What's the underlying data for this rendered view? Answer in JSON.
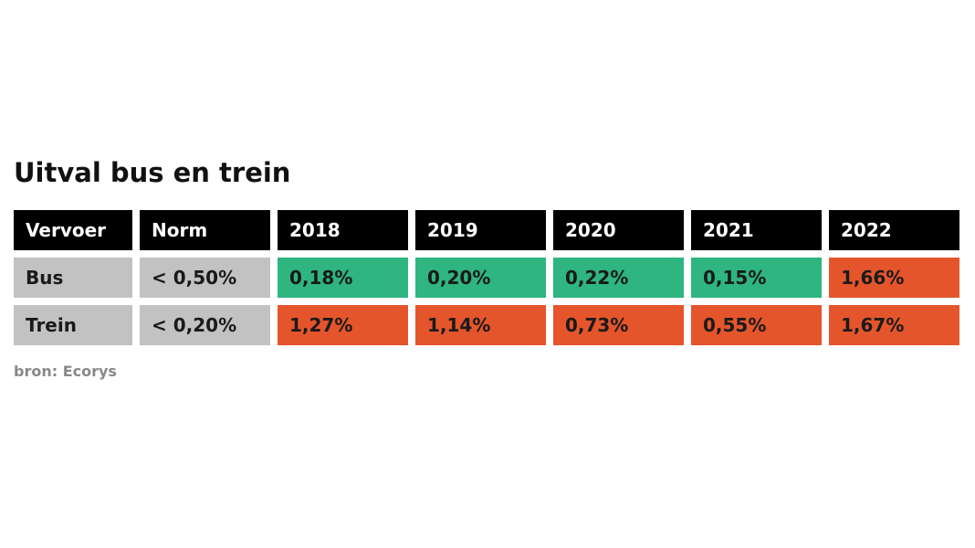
{
  "header": {
    "title": "Uitval bus en trein"
  },
  "table": {
    "columns": [
      "Vervoer",
      "Norm",
      "2018",
      "2019",
      "2020",
      "2021",
      "2022"
    ],
    "rows": [
      [
        "Bus",
        "< 0,50%",
        "0,18%",
        "0,20%",
        "0,22%",
        "0,15%",
        "1,66%"
      ],
      [
        "Trein",
        "< 0,20%",
        "1,27%",
        "1,14%",
        "0,73%",
        "0,55%",
        "1,67%"
      ]
    ],
    "cell_colors": [
      [
        "#c2c2c2",
        "#c2c2c2",
        "#2fb57f",
        "#2fb57f",
        "#2fb57f",
        "#2fb57f",
        "#e5552b"
      ],
      [
        "#c2c2c2",
        "#c2c2c2",
        "#e5552b",
        "#e5552b",
        "#e5552b",
        "#e5552b",
        "#e5552b"
      ]
    ]
  },
  "footer": {
    "source": "bron: Ecorys"
  }
}
